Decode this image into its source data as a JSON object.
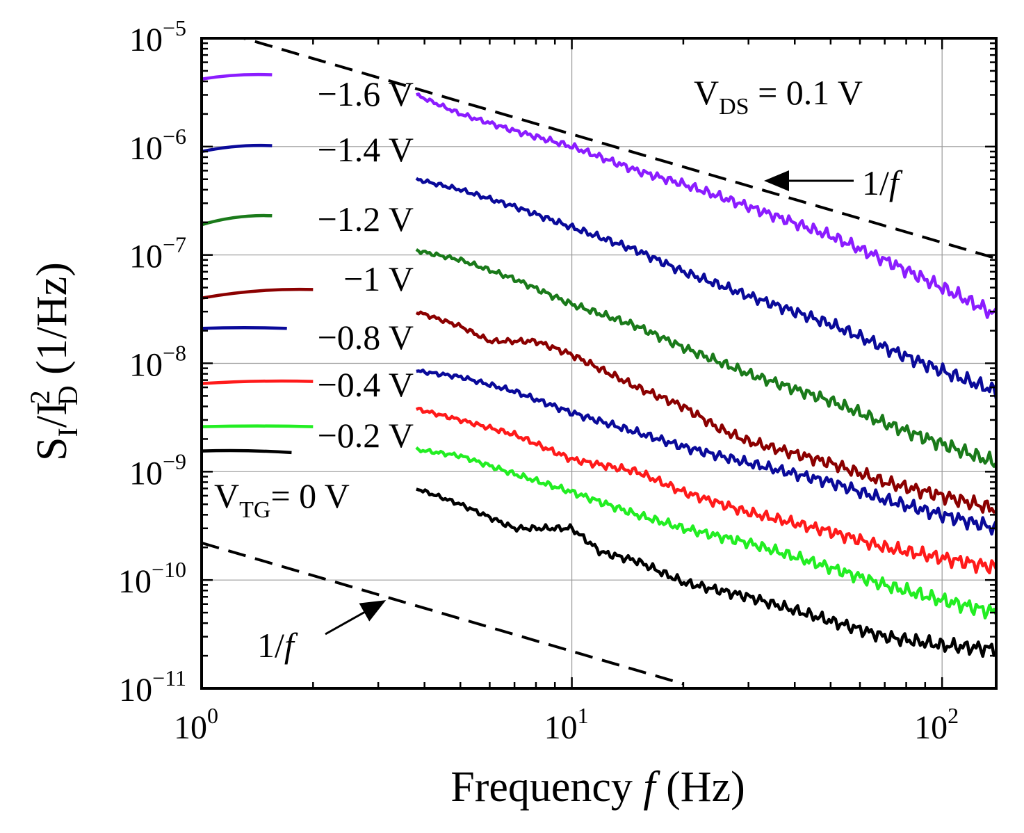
{
  "chart_data": {
    "type": "line",
    "title": "",
    "x_scale": "log",
    "y_scale": "log",
    "xlim": [
      1,
      140
    ],
    "ylim": [
      1e-11,
      1e-05
    ],
    "xlabel": {
      "prefix": "Frequency ",
      "italic": "f",
      "suffix": " (Hz)"
    },
    "ylabel": {
      "main": "S",
      "sub1": "I",
      "mid": "/I",
      "sup": "2",
      "sub2": "D",
      "suffix": " (1/Hz)"
    },
    "x_ticks": [
      {
        "value": 1,
        "base": "10",
        "exp": "0"
      },
      {
        "value": 10,
        "base": "10",
        "exp": "1"
      },
      {
        "value": 100,
        "base": "10",
        "exp": "2"
      }
    ],
    "y_ticks": [
      {
        "value": 1e-05,
        "base": "10",
        "exp": "−5"
      },
      {
        "value": 1e-06,
        "base": "10",
        "exp": "−6"
      },
      {
        "value": 1e-07,
        "base": "10",
        "exp": "−7"
      },
      {
        "value": 1e-08,
        "base": "10",
        "exp": "−8"
      },
      {
        "value": 1e-09,
        "base": "10",
        "exp": "−9"
      },
      {
        "value": 1e-10,
        "base": "10",
        "exp": "−10"
      },
      {
        "value": 1e-11,
        "base": "10",
        "exp": "−11"
      }
    ],
    "grid": true,
    "series": [
      {
        "name": "−1.6 V",
        "color": "#8b1cff",
        "x": [
          3.8,
          5,
          7,
          10,
          15,
          20,
          30,
          50,
          70,
          100,
          140
        ],
        "y": [
          3e-06,
          2e-06,
          1.4e-06,
          1e-06,
          6e-07,
          4.5e-07,
          2.8e-07,
          1.5e-07,
          9e-08,
          5e-08,
          2.8e-08
        ]
      },
      {
        "name": "−1.4 V",
        "color": "#0a0a9a",
        "x": [
          3.8,
          5,
          7,
          10,
          15,
          20,
          30,
          50,
          70,
          100,
          140
        ],
        "y": [
          5e-07,
          4e-07,
          2.8e-07,
          1.8e-07,
          1.1e-07,
          7e-08,
          4.2e-08,
          2.3e-08,
          1.4e-08,
          8.5e-09,
          5.5e-09
        ]
      },
      {
        "name": "−1.2 V",
        "color": "#1a7a1a",
        "x": [
          3.8,
          5,
          7,
          10,
          15,
          20,
          30,
          50,
          70,
          100,
          140
        ],
        "y": [
          1.1e-07,
          9e-08,
          6e-08,
          3.5e-08,
          2.2e-08,
          1.4e-08,
          8e-09,
          4.5e-09,
          2.8e-09,
          1.8e-09,
          1.2e-09
        ]
      },
      {
        "name": "−1 V",
        "color": "#8b0000",
        "x": [
          3.8,
          5,
          6,
          8,
          10,
          15,
          20,
          25,
          30,
          50,
          70,
          100,
          140
        ],
        "y": [
          3e-08,
          2.2e-08,
          1.6e-08,
          1.6e-08,
          1.2e-08,
          6e-09,
          4e-09,
          2.5e-09,
          1.9e-09,
          1.2e-09,
          8e-10,
          6e-10,
          4.5e-10
        ]
      },
      {
        "name": "−0.8 V",
        "color": "#0a0a9a",
        "x": [
          3.8,
          5,
          7,
          10,
          15,
          20,
          30,
          50,
          70,
          100,
          140
        ],
        "y": [
          8.5e-09,
          7.5e-09,
          5.5e-09,
          3.5e-09,
          2.3e-09,
          1.7e-09,
          1.2e-09,
          8e-10,
          5.5e-10,
          4e-10,
          3e-10
        ]
      },
      {
        "name": "−0.4 V",
        "color": "#ff1a1a",
        "x": [
          3.8,
          5,
          7,
          10,
          15,
          20,
          30,
          50,
          70,
          100,
          140
        ],
        "y": [
          3.8e-09,
          3e-09,
          2.2e-09,
          1.3e-09,
          1e-09,
          6.5e-10,
          4.2e-10,
          2.8e-10,
          2e-10,
          1.6e-10,
          1.3e-10
        ]
      },
      {
        "name": "−0.2 V",
        "color": "#22ee22",
        "x": [
          3.8,
          5,
          7,
          10,
          15,
          20,
          30,
          50,
          70,
          100,
          140
        ],
        "y": [
          1.6e-09,
          1.4e-09,
          9.5e-10,
          6.5e-10,
          4e-10,
          3e-10,
          2.2e-10,
          1.3e-10,
          9e-11,
          6.5e-11,
          5e-11
        ]
      },
      {
        "name": "0 V",
        "color": "#000000",
        "x": [
          3.8,
          5,
          7,
          10,
          12,
          15,
          20,
          30,
          50,
          70,
          100,
          140
        ],
        "y": [
          7e-10,
          5e-10,
          3e-10,
          3e-10,
          1.8e-10,
          1.5e-10,
          9.5e-11,
          7e-11,
          4.2e-11,
          3e-11,
          2.5e-11,
          2.3e-11
        ]
      }
    ],
    "legend_stubs": [
      {
        "color": "#8b1cff",
        "x": [
          1.0,
          1.55
        ],
        "y": [
          4.2e-06,
          4.6e-06
        ]
      },
      {
        "color": "#0a0a9a",
        "x": [
          1.0,
          1.55
        ],
        "y": [
          9e-07,
          1.02e-06
        ]
      },
      {
        "color": "#1a7a1a",
        "x": [
          1.0,
          1.55
        ],
        "y": [
          1.9e-07,
          2.3e-07
        ]
      },
      {
        "color": "#8b0000",
        "x": [
          1.0,
          2.0
        ],
        "y": [
          4e-08,
          4.8e-08
        ]
      },
      {
        "color": "#0a0a9a",
        "x": [
          1.0,
          1.7
        ],
        "y": [
          2.1e-08,
          2.1e-08
        ]
      },
      {
        "color": "#ff1a1a",
        "x": [
          1.0,
          2.0
        ],
        "y": [
          6.5e-09,
          6.8e-09
        ]
      },
      {
        "color": "#22ee22",
        "x": [
          1.0,
          2.0
        ],
        "y": [
          2.6e-09,
          2.6e-09
        ]
      },
      {
        "color": "#000000",
        "x": [
          1.0,
          1.75
        ],
        "y": [
          1.55e-09,
          1.5e-09
        ]
      }
    ],
    "legend_labels": [
      "−1.6 V",
      "−1.4 V",
      "−1.2 V",
      "−1 V",
      "−0.8 V",
      "−0.4 V",
      "−0.2 V"
    ],
    "reference_lines": [
      {
        "label": "1/f",
        "x": [
          1.0,
          140
        ],
        "y": [
          1.3e-05,
          9.3e-08
        ],
        "style": "dashed"
      },
      {
        "label": "1/f",
        "x": [
          1.0,
          20
        ],
        "y": [
          2.2e-10,
          1.1e-11
        ],
        "style": "dashed"
      }
    ],
    "annotations": {
      "vds": {
        "main": "V",
        "sub": "DS",
        "rest": " = 0.1 V"
      },
      "vtg": {
        "main": "V",
        "sub": "TG",
        "rest": "= 0 V"
      },
      "one_over_f_upper": {
        "prefix": "1/",
        "italic": "f"
      },
      "one_over_f_lower": {
        "prefix": "1/",
        "italic": "f"
      }
    }
  }
}
